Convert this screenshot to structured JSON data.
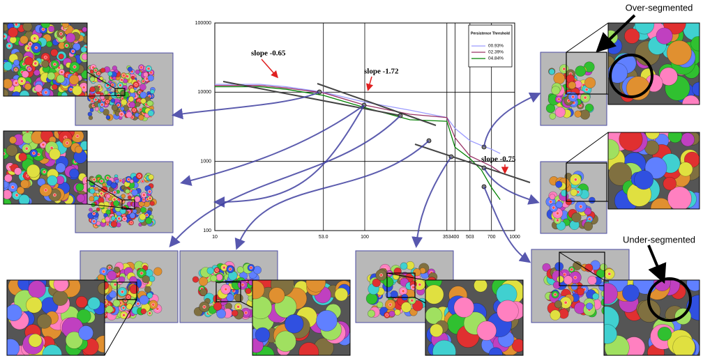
{
  "chart_data": {
    "type": "line",
    "log_x": true,
    "log_y": true,
    "grid": true,
    "x": [
      10,
      20,
      30,
      53,
      100,
      200,
      353,
      400,
      503,
      600,
      700,
      800
    ],
    "series": [
      {
        "name": "00.93%",
        "color": "#9a9aff",
        "values": [
          13000,
          13000,
          12000,
          10000,
          7200,
          5500,
          4300,
          3000,
          2000,
          1700,
          1500,
          1300
        ]
      },
      {
        "name": "02.39%",
        "color": "#993366",
        "values": [
          12500,
          12500,
          11500,
          9800,
          6500,
          4800,
          4300,
          2200,
          1200,
          1000,
          850,
          700
        ]
      },
      {
        "name": "04.84%",
        "color": "#008000",
        "values": [
          12000,
          12000,
          11000,
          9000,
          6000,
          4000,
          3800,
          1600,
          1100,
          750,
          420,
          280
        ]
      }
    ],
    "legend_title": "Persistence Threshold",
    "legend_position": "upper right",
    "xlim": [
      10,
      1000
    ],
    "ylim": [
      100,
      100000
    ],
    "xticks": [
      10,
      {
        "value": 53,
        "label": "53.0"
      },
      100,
      353,
      400,
      503,
      700,
      1000
    ],
    "yticks": [
      100,
      1000,
      10000,
      100000
    ],
    "annotations": [
      "slope -0.65",
      "slope -1.72",
      "slope -0.75",
      "Over-segmented",
      "Under-segmented"
    ]
  }
}
